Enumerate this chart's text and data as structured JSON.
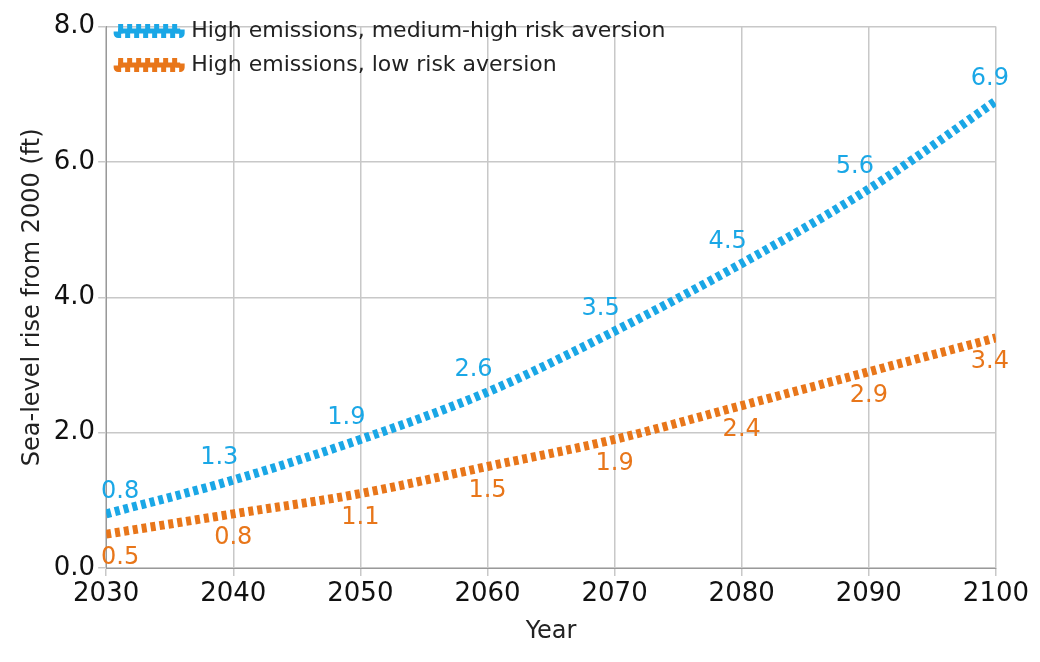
{
  "chart_data": {
    "type": "line",
    "xlabel": "Year",
    "ylabel": "Sea-level rise from 2000 (ft)",
    "x": [
      2030,
      2040,
      2050,
      2060,
      2070,
      2080,
      2090,
      2100
    ],
    "series": [
      {
        "name": "High emissions, medium-high risk aversion",
        "color": "#1aa7e6",
        "values": [
          0.8,
          1.3,
          1.9,
          2.6,
          3.5,
          4.5,
          5.6,
          6.9
        ]
      },
      {
        "name": "High emissions, low risk aversion",
        "color": "#e8761a",
        "values": [
          0.5,
          0.8,
          1.1,
          1.5,
          1.9,
          2.4,
          2.9,
          3.4
        ]
      }
    ],
    "xlim": [
      2030,
      2100
    ],
    "xticks": [
      2030,
      2040,
      2050,
      2060,
      2070,
      2080,
      2090,
      2100
    ],
    "ylim": [
      0,
      8
    ],
    "yticks": [
      {
        "value": 0,
        "label": "0.0"
      },
      {
        "value": 2,
        "label": "2.0"
      },
      {
        "value": 4,
        "label": "4.0"
      },
      {
        "value": 6,
        "label": "6.0"
      },
      {
        "value": 8,
        "label": "8.0"
      }
    ],
    "grid": true,
    "legend": "top left",
    "marker": "none",
    "line_style": "dotted",
    "data_labels": true
  }
}
